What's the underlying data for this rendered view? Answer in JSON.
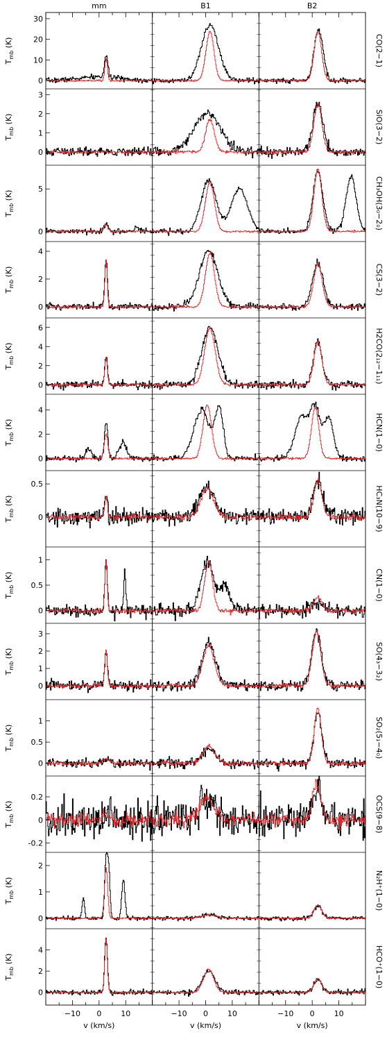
{
  "chart_data": {
    "type": "line",
    "columns": [
      "mm",
      "B1",
      "B2"
    ],
    "xlabel": "v (km/s)",
    "xlim": [
      -20,
      20
    ],
    "xticks": [
      -10,
      0,
      10
    ],
    "ylabel": "T",
    "ylabel_sub": "mb",
    "ylabel_unit": "(K)",
    "series_colors": {
      "observed_black": "#000000",
      "observed_red": "#e8262a"
    },
    "rows": [
      {
        "label_main": "CO(2−1)",
        "label_parts": [
          [
            "CO(2−1)",
            ""
          ]
        ],
        "ylim": [
          -4,
          33
        ],
        "yticks": [
          0,
          10,
          20,
          30
        ],
        "panels": [
          {
            "peak_v": 2.5,
            "black": [
              [
                2.5,
                10.5,
                0.6,
                0
              ],
              [
                0.5,
                1.8,
                8,
                0
              ]
            ],
            "red": [
              [
                2.5,
                10.3,
                0.5,
                0
              ]
            ]
          },
          {
            "peak_v": 1.5,
            "black": [
              [
                1.5,
                27,
                3.2,
                0
              ],
              [
                0,
                0,
                0,
                0
              ]
            ],
            "red": [
              [
                1.5,
                24,
                1.5,
                0
              ]
            ]
          },
          {
            "peak_v": 2.0,
            "black": [
              [
                2.0,
                24,
                1.5,
                0
              ],
              [
                4.0,
                5,
                1.0,
                0
              ]
            ],
            "red": [
              [
                2.0,
                24,
                1.4,
                0
              ]
            ]
          }
        ]
      },
      {
        "label_main": "SiO(3−2)",
        "label_parts": [
          [
            "SiO(3−2)",
            ""
          ]
        ],
        "ylim": [
          -0.7,
          3.3
        ],
        "yticks": [
          0,
          1,
          2,
          3
        ],
        "panels": [
          {
            "peak_v": 0,
            "black": [
              [
                0,
                0,
                1,
                0
              ]
            ],
            "red": [
              [
                0,
                0,
                1,
                0
              ]
            ]
          },
          {
            "peak_v": 0.5,
            "black": [
              [
                0.5,
                2.0,
                5.0,
                0
              ]
            ],
            "red": [
              [
                1.5,
                1.7,
                1.6,
                0
              ]
            ]
          },
          {
            "peak_v": 2.0,
            "black": [
              [
                2.0,
                2.6,
                1.8,
                0
              ]
            ],
            "red": [
              [
                2.0,
                2.5,
                1.5,
                0
              ]
            ]
          }
        ]
      },
      {
        "label_main": "CH₃OH(3₀−2₀)",
        "ylim": [
          -1.2,
          7.8
        ],
        "yticks": [
          0,
          5
        ],
        "panels": [
          {
            "peak_v": 2.5,
            "black": [
              [
                2.5,
                0.9,
                0.8,
                0
              ],
              [
                14,
                0.6,
                0.8,
                0
              ]
            ],
            "red": [
              [
                2.5,
                0.8,
                0.7,
                0
              ]
            ]
          },
          {
            "peak_v": 1.0,
            "black": [
              [
                1.0,
                6.0,
                2.8,
                0
              ],
              [
                12.5,
                5.1,
                3.0,
                0
              ]
            ],
            "red": [
              [
                1.5,
                5.8,
                1.7,
                0
              ]
            ]
          },
          {
            "peak_v": 2.0,
            "black": [
              [
                2.0,
                7.2,
                1.8,
                0
              ],
              [
                14.5,
                6.4,
                1.9,
                0
              ]
            ],
            "red": [
              [
                2.0,
                7.3,
                1.5,
                0
              ]
            ]
          }
        ]
      },
      {
        "label_main": "CS(3−2)",
        "ylim": [
          -0.8,
          4.7
        ],
        "yticks": [
          0,
          2,
          4
        ],
        "panels": [
          {
            "peak_v": 2.5,
            "black": [
              [
                2.5,
                3.4,
                0.5,
                0
              ]
            ],
            "red": [
              [
                2.5,
                3.3,
                0.45,
                0
              ]
            ]
          },
          {
            "peak_v": 1.0,
            "black": [
              [
                1.0,
                4.0,
                3.5,
                0
              ]
            ],
            "red": [
              [
                1.5,
                3.9,
                1.7,
                0
              ]
            ]
          },
          {
            "peak_v": 2.0,
            "black": [
              [
                2.0,
                3.1,
                2.0,
                0
              ]
            ],
            "red": [
              [
                2.0,
                3.1,
                1.6,
                0
              ]
            ]
          }
        ]
      },
      {
        "label_main": "H2CO(2₁₂−1₁₁)",
        "ylim": [
          -1.0,
          7.0
        ],
        "yticks": [
          0,
          2,
          4,
          6
        ],
        "panels": [
          {
            "peak_v": 2.5,
            "black": [
              [
                2.5,
                3.0,
                0.5,
                0
              ]
            ],
            "red": [
              [
                2.5,
                2.8,
                0.5,
                0
              ]
            ]
          },
          {
            "peak_v": 1.5,
            "black": [
              [
                1.5,
                6.0,
                3.0,
                0
              ]
            ],
            "red": [
              [
                1.5,
                5.9,
                2.0,
                0
              ]
            ]
          },
          {
            "peak_v": 2.0,
            "black": [
              [
                2.0,
                4.5,
                1.6,
                0
              ]
            ],
            "red": [
              [
                2.0,
                4.5,
                1.5,
                0
              ]
            ]
          }
        ]
      },
      {
        "label_main": "HCN(1−0)",
        "ylim": [
          -1.0,
          5.3
        ],
        "yticks": [
          0,
          2,
          4
        ],
        "panels": [
          {
            "peak_v": 2.5,
            "black": [
              [
                2.5,
                3.0,
                0.6,
                0
              ],
              [
                -4,
                0.8,
                1.0,
                0
              ],
              [
                9,
                1.4,
                1.4,
                0
              ]
            ],
            "red": [
              [
                2.5,
                2.0,
                0.7,
                0
              ]
            ]
          },
          {
            "peak_v": 0.5,
            "black": [
              [
                -1.5,
                4.0,
                3.0,
                0
              ],
              [
                5.0,
                4.0,
                1.5,
                0
              ]
            ],
            "red": [
              [
                0.5,
                4.4,
                1.6,
                0
              ]
            ]
          },
          {
            "peak_v": 1.0,
            "black": [
              [
                -4.0,
                3.5,
                2.5,
                0
              ],
              [
                1.0,
                4.0,
                1.8,
                0
              ],
              [
                6.0,
                3.4,
                1.8,
                0
              ]
            ],
            "red": [
              [
                1.0,
                4.2,
                1.4,
                0
              ]
            ]
          }
        ]
      },
      {
        "label_main": "HC₃N(10−9)",
        "ylim": [
          -0.45,
          0.7
        ],
        "yticks": [
          0,
          0.5
        ],
        "panels": [
          {
            "peak_v": 2.5,
            "black": [
              [
                2.5,
                0.35,
                0.5,
                0
              ]
            ],
            "red": [
              [
                2.5,
                0.3,
                0.5,
                0
              ]
            ]
          },
          {
            "peak_v": 0.5,
            "black": [
              [
                0.5,
                0.42,
                3.0,
                0
              ]
            ],
            "red": [
              [
                0.5,
                0.42,
                2.5,
                0
              ]
            ]
          },
          {
            "peak_v": 2.0,
            "black": [
              [
                2.0,
                0.55,
                1.8,
                0
              ]
            ],
            "red": [
              [
                2.0,
                0.55,
                1.5,
                0
              ]
            ]
          }
        ]
      },
      {
        "label_main": "CN(1−0)",
        "ylim": [
          -0.25,
          1.25
        ],
        "yticks": [
          0,
          0.5,
          1
        ],
        "panels": [
          {
            "peak_v": 2.5,
            "black": [
              [
                2.5,
                1.02,
                0.45,
                0
              ],
              [
                9.5,
                0.8,
                0.35,
                0
              ]
            ],
            "red": [
              [
                2.5,
                0.95,
                0.45,
                0
              ]
            ]
          },
          {
            "peak_v": 0.5,
            "black": [
              [
                0.5,
                1.0,
                2.3,
                0
              ],
              [
                7.0,
                0.5,
                1.8,
                0
              ]
            ],
            "red": [
              [
                1.0,
                0.95,
                1.5,
                0
              ]
            ]
          },
          {
            "peak_v": 2.0,
            "black": [
              [
                2.0,
                0.15,
                2.0,
                0
              ]
            ],
            "red": [
              [
                2.0,
                0.25,
                1.5,
                0
              ]
            ]
          }
        ]
      },
      {
        "label_main": "SO(4₃−3₂)",
        "ylim": [
          -0.8,
          3.6
        ],
        "yticks": [
          0,
          1,
          2,
          3
        ],
        "panels": [
          {
            "peak_v": 2.5,
            "black": [
              [
                2.5,
                2.1,
                0.5,
                0
              ]
            ],
            "red": [
              [
                2.5,
                2.0,
                0.5,
                0
              ]
            ]
          },
          {
            "peak_v": 1.0,
            "black": [
              [
                1.0,
                2.5,
                2.5,
                0
              ]
            ],
            "red": [
              [
                1.0,
                2.3,
                2.2,
                0
              ]
            ]
          },
          {
            "peak_v": 1.5,
            "black": [
              [
                1.5,
                3.2,
                1.8,
                0
              ]
            ],
            "red": [
              [
                1.5,
                3.1,
                1.6,
                0
              ]
            ]
          }
        ]
      },
      {
        "label_main": "SO₂(5₁−4₀)",
        "ylim": [
          -0.3,
          1.5
        ],
        "yticks": [
          0,
          0.5,
          1
        ],
        "panels": [
          {
            "peak_v": 2.5,
            "black": [
              [
                2.5,
                0.1,
                1.5,
                0
              ]
            ],
            "red": [
              [
                2.5,
                0.1,
                1.5,
                0
              ]
            ]
          },
          {
            "peak_v": 1.0,
            "black": [
              [
                1.0,
                0.35,
                2.5,
                0
              ]
            ],
            "red": [
              [
                1.0,
                0.4,
                2.3,
                0
              ]
            ]
          },
          {
            "peak_v": 2.0,
            "black": [
              [
                2.0,
                1.2,
                1.5,
                0
              ]
            ],
            "red": [
              [
                2.0,
                1.3,
                1.3,
                0
              ]
            ]
          }
        ]
      },
      {
        "label_main": "OCS(9−8)",
        "ylim": [
          -0.28,
          0.38
        ],
        "yticks": [
          -0.2,
          0,
          0.2
        ],
        "panels": [
          {
            "peak_v": 2.5,
            "black": [
              [
                2.5,
                0.05,
                1.5,
                0
              ]
            ],
            "red": [
              [
                2.5,
                0.05,
                1.5,
                0
              ]
            ]
          },
          {
            "peak_v": 0.5,
            "black": [
              [
                0.5,
                0.17,
                2.5,
                0
              ]
            ],
            "red": [
              [
                0.5,
                0.2,
                2.5,
                0
              ]
            ]
          },
          {
            "peak_v": 1.5,
            "black": [
              [
                1.5,
                0.3,
                1.6,
                0
              ]
            ],
            "red": [
              [
                1.5,
                0.32,
                1.5,
                0
              ]
            ]
          }
        ]
      },
      {
        "label_main": "N₂H⁺(1−0)",
        "ylim": [
          -0.4,
          2.5
        ],
        "yticks": [
          0,
          1,
          2
        ],
        "panels": [
          {
            "peak_v": 2.5,
            "black": [
              [
                2.5,
                2.2,
                0.5,
                0
              ],
              [
                3.5,
                1.8,
                0.5,
                0
              ],
              [
                9.0,
                1.5,
                0.6,
                0
              ],
              [
                -6.0,
                0.8,
                0.45,
                0
              ]
            ],
            "red": [
              [
                2.5,
                1.9,
                0.6,
                0
              ]
            ]
          },
          {
            "peak_v": 1.0,
            "black": [
              [
                1.0,
                0.12,
                3.0,
                0
              ]
            ],
            "red": [
              [
                1.0,
                0.12,
                3.0,
                0
              ]
            ]
          },
          {
            "peak_v": 2.0,
            "black": [
              [
                2.0,
                0.45,
                1.5,
                0
              ]
            ],
            "red": [
              [
                2.0,
                0.5,
                1.4,
                0
              ]
            ]
          }
        ]
      },
      {
        "label_main": "HCO⁺(1−0)",
        "ylim": [
          -1.2,
          6.0
        ],
        "yticks": [
          0,
          2,
          4
        ],
        "panels": [
          {
            "peak_v": 2.5,
            "black": [
              [
                2.5,
                5.3,
                0.5,
                0
              ]
            ],
            "red": [
              [
                2.5,
                5.0,
                0.5,
                0
              ]
            ]
          },
          {
            "peak_v": 1.0,
            "black": [
              [
                1.0,
                2.0,
                2.3,
                0
              ]
            ],
            "red": [
              [
                1.0,
                2.2,
                1.9,
                0
              ]
            ]
          },
          {
            "peak_v": 2.0,
            "black": [
              [
                2.0,
                1.2,
                1.5,
                0
              ]
            ],
            "red": [
              [
                2.0,
                1.3,
                1.4,
                0
              ]
            ]
          }
        ]
      }
    ]
  }
}
